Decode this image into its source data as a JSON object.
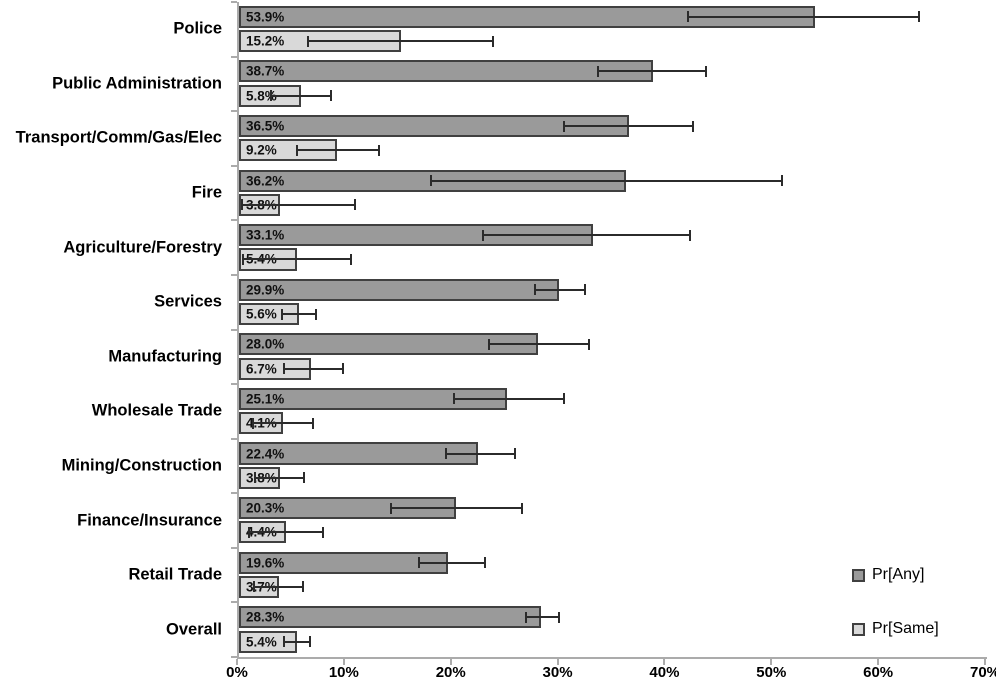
{
  "chart_data": {
    "type": "bar",
    "orientation": "horizontal",
    "title": "",
    "xlabel": "",
    "ylabel": "",
    "grid": false,
    "xlim": [
      0,
      70
    ],
    "xticks": [
      {
        "value": 0,
        "label": "0%"
      },
      {
        "value": 10,
        "label": "10%"
      },
      {
        "value": 20,
        "label": "20%"
      },
      {
        "value": 30,
        "label": "30%"
      },
      {
        "value": 40,
        "label": "40%"
      },
      {
        "value": 50,
        "label": "50%"
      },
      {
        "value": 60,
        "label": "60%"
      },
      {
        "value": 70,
        "label": "70%"
      }
    ],
    "categories": [
      "Police",
      "Public Administration",
      "Transport/Comm/Gas/Elec",
      "Fire",
      "Agriculture/Forestry",
      "Services",
      "Manufacturing",
      "Wholesale Trade",
      "Mining/Construction",
      "Finance/Insurance",
      "Retail Trade",
      "Overall"
    ],
    "legend_position": "right",
    "series": [
      {
        "name": "Pr[Any]",
        "color": "#9a9a9a",
        "border_color": "#404040",
        "points": [
          {
            "value": 53.9,
            "label": "53.9%",
            "ci": [
              42.0,
              63.6
            ]
          },
          {
            "value": 38.7,
            "label": "38.7%",
            "ci": [
              33.6,
              43.7
            ]
          },
          {
            "value": 36.5,
            "label": "36.5%",
            "ci": [
              30.4,
              42.5
            ]
          },
          {
            "value": 36.2,
            "label": "36.2%",
            "ci": [
              18.0,
              50.8
            ]
          },
          {
            "value": 33.1,
            "label": "33.1%",
            "ci": [
              22.8,
              42.2
            ]
          },
          {
            "value": 29.9,
            "label": "29.9%",
            "ci": [
              27.7,
              32.4
            ]
          },
          {
            "value": 28.0,
            "label": "28.0%",
            "ci": [
              23.4,
              32.8
            ]
          },
          {
            "value": 25.1,
            "label": "25.1%",
            "ci": [
              20.1,
              30.4
            ]
          },
          {
            "value": 22.4,
            "label": "22.4%",
            "ci": [
              19.4,
              25.8
            ]
          },
          {
            "value": 20.3,
            "label": "20.3%",
            "ci": [
              14.2,
              26.5
            ]
          },
          {
            "value": 19.6,
            "label": "19.6%",
            "ci": [
              16.8,
              23.0
            ]
          },
          {
            "value": 28.3,
            "label": "28.3%",
            "ci": [
              26.9,
              29.9
            ]
          }
        ]
      },
      {
        "name": "Pr[Same]",
        "color": "#d9d9d9",
        "border_color": "#404040",
        "points": [
          {
            "value": 15.2,
            "label": "15.2%",
            "ci": [
              6.5,
              23.8
            ]
          },
          {
            "value": 5.8,
            "label": "5.8%",
            "ci": [
              3.0,
              8.6
            ]
          },
          {
            "value": 9.2,
            "label": "9.2%",
            "ci": [
              5.4,
              13.1
            ]
          },
          {
            "value": 3.8,
            "label": "3.8%",
            "ci": [
              0.3,
              10.9
            ]
          },
          {
            "value": 5.4,
            "label": "5.4%",
            "ci": [
              0.4,
              10.5
            ]
          },
          {
            "value": 5.6,
            "label": "5.6%",
            "ci": [
              4.0,
              7.2
            ]
          },
          {
            "value": 6.7,
            "label": "6.7%",
            "ci": [
              4.2,
              9.7
            ]
          },
          {
            "value": 4.1,
            "label": "4.1%",
            "ci": [
              1.3,
              6.9
            ]
          },
          {
            "value": 3.8,
            "label": "3.8%",
            "ci": [
              1.5,
              6.1
            ]
          },
          {
            "value": 4.4,
            "label": "4.4%",
            "ci": [
              0.9,
              7.9
            ]
          },
          {
            "value": 3.7,
            "label": "3.7%",
            "ci": [
              1.4,
              6.0
            ]
          },
          {
            "value": 5.4,
            "label": "5.4%",
            "ci": [
              4.2,
              6.6
            ]
          }
        ]
      }
    ]
  },
  "colors": {
    "axis": "#ababab",
    "error_bar": "#2b2b2b",
    "text": "#000000",
    "background": "#ffffff"
  }
}
